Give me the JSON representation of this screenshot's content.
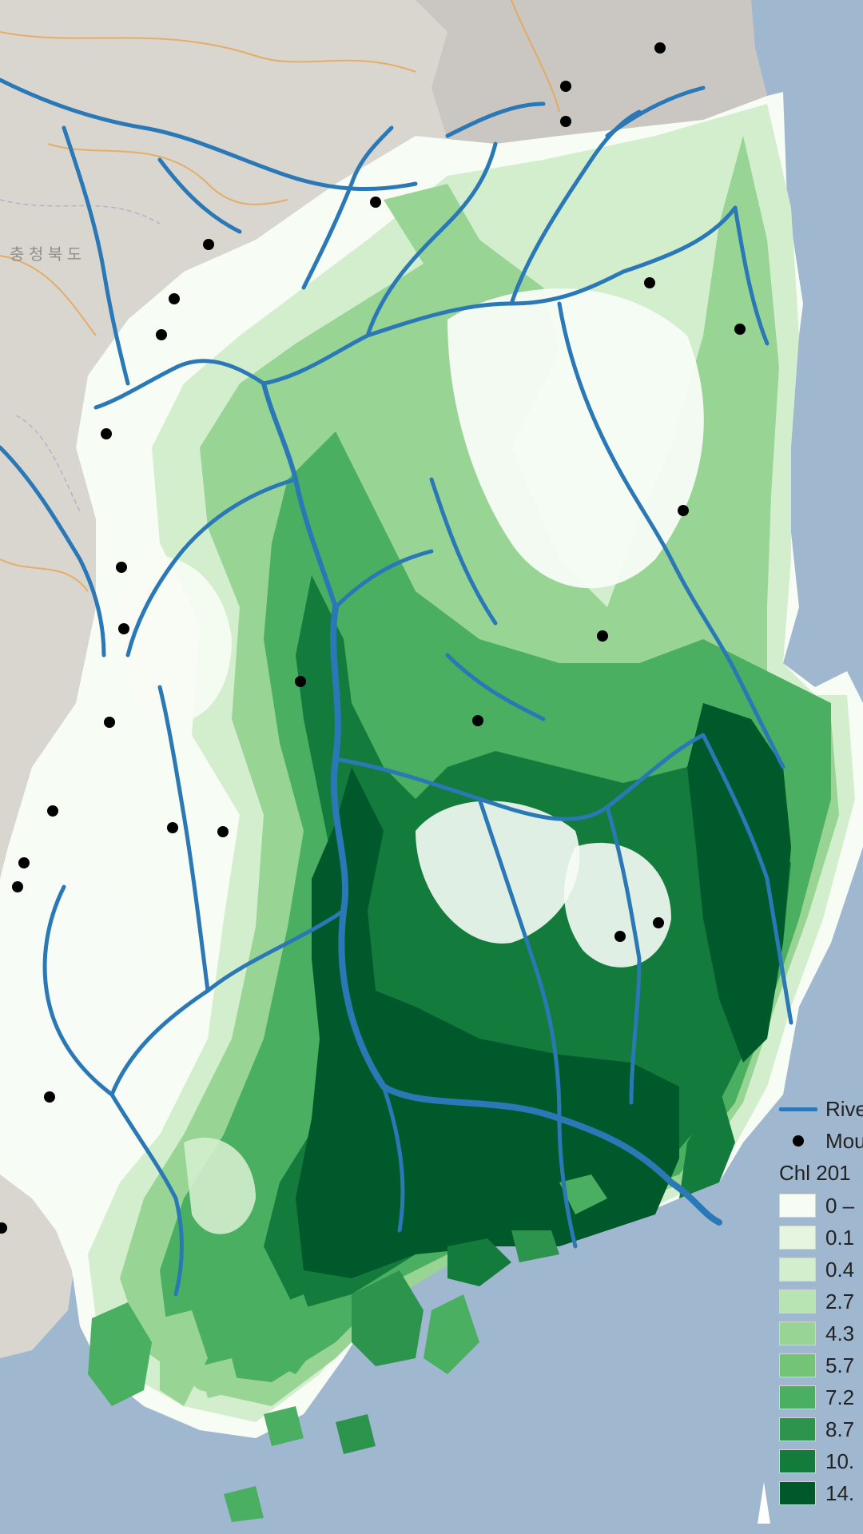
{
  "map": {
    "colors": {
      "sea": "#9fb7cf",
      "basemap": "#d9d6d0",
      "river": "#2b78b6",
      "mountain": "#000000"
    },
    "basemap_labels": [
      "충 청 북 도"
    ],
    "legend": {
      "river_label": "Rive",
      "mountain_label": "Mou",
      "layer_title": "Chl 201",
      "classes": [
        {
          "label": "0 –",
          "color": "#f7fcf5"
        },
        {
          "label": "0.1",
          "color": "#e5f5e0"
        },
        {
          "label": "0.4",
          "color": "#d3eecd"
        },
        {
          "label": "2.7",
          "color": "#b8e3b2"
        },
        {
          "label": "4.3",
          "color": "#98d594"
        },
        {
          "label": "5.7",
          "color": "#73c476"
        },
        {
          "label": "7.2",
          "color": "#4aaf61"
        },
        {
          "label": "8.7",
          "color": "#2c944c"
        },
        {
          "label": "10.",
          "color": "#137c3c"
        },
        {
          "label": "14.",
          "color": "#00592a"
        }
      ]
    },
    "north_arrow_icon": "north-arrow-icon"
  }
}
